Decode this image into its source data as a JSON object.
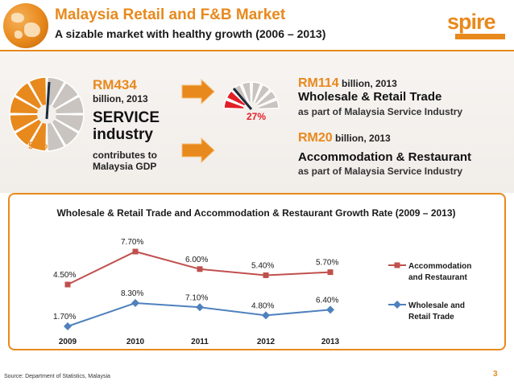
{
  "header": {
    "title": "Malaysia Retail and F&B Market",
    "subtitle": "A sizable market with healthy growth (2006 – 2013)"
  },
  "logo": {
    "name": "spire",
    "tagline": ""
  },
  "left_block": {
    "gauge_percent": "51%",
    "gauge_value": 0.51,
    "amount": "RM434",
    "amount_unit": "billion, 2013",
    "headline": "SERVICE industry",
    "note": "contributes to Malaysia GDP"
  },
  "right_gauge": {
    "percent": "27%",
    "value": 0.27
  },
  "wholesale_retail": {
    "amount": "RM114",
    "amount_unit": "billion, 2013",
    "title": "Wholesale & Retail Trade",
    "subtitle": "as part of Malaysia Service Industry"
  },
  "accommodation": {
    "amount": "RM20",
    "amount_unit": "billion, 2013",
    "title": "Accommodation & Restaurant",
    "subtitle": "as part of Malaysia Service Industry"
  },
  "colors": {
    "accent": "#e8891d",
    "accommodation_series": "#c0504d",
    "wholesale_series": "#4f81bd",
    "gauge_red": "#e11f26"
  },
  "chart_data": {
    "type": "line",
    "title": "Wholesale & Retail Trade and Accommodation & Restaurant Growth Rate (2009 – 2013)",
    "categories": [
      "2009",
      "2010",
      "2011",
      "2012",
      "2013"
    ],
    "series": [
      {
        "name": "Accommodation and Restaurant",
        "values": [
          4.5,
          7.7,
          6.0,
          5.4,
          5.7
        ],
        "labels": [
          "4.50%",
          "7.70%",
          "6.00%",
          "5.40%",
          "5.70%"
        ],
        "color": "#c0504d",
        "marker": "square"
      },
      {
        "name": "Wholesale and Retail Trade",
        "values": [
          1.7,
          8.3,
          7.1,
          4.8,
          6.4
        ],
        "labels": [
          "1.70%",
          "8.30%",
          "7.10%",
          "4.80%",
          "6.40%"
        ],
        "color": "#4f81bd",
        "marker": "diamond"
      }
    ],
    "legend_position": "right",
    "grid": false
  },
  "footer": {
    "source": "Source: Department of Statistics, Malaysia",
    "page": "3"
  }
}
